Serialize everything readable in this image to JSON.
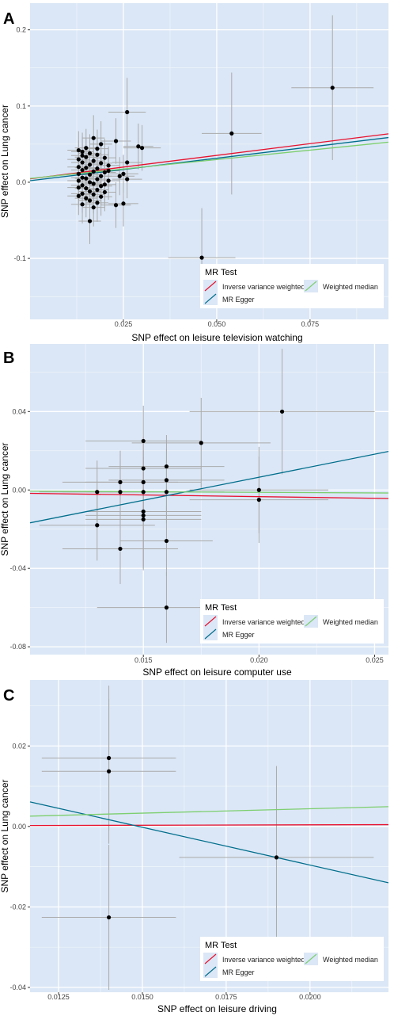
{
  "colors": {
    "panel_bg": "#dbe7f6",
    "grid": "#ffffff",
    "point": "#000000",
    "error_bar": "#aaaaaa",
    "ivw": "#e8112d",
    "egger": "#006e8c",
    "wmedian": "#7dcf6f"
  },
  "legend": {
    "title": "MR Test",
    "items": [
      {
        "key": "ivw",
        "label": "Inverse variance weighted"
      },
      {
        "key": "wmedian",
        "label": "Weighted median"
      },
      {
        "key": "egger",
        "label": "MR Egger"
      }
    ]
  },
  "chart_data": [
    {
      "panel": "A",
      "type": "scatter",
      "xlabel": "SNP effect on leisure television watching",
      "ylabel": "SNP effect on Lung cancer",
      "xlim": [
        0.0,
        0.096
      ],
      "ylim": [
        -0.18,
        0.235
      ],
      "xticks": [
        0.025,
        0.05,
        0.075
      ],
      "xtick_labels": [
        "0.025",
        "0.050",
        "0.075"
      ],
      "yticks": [
        -0.1,
        0.0,
        0.1,
        0.2
      ],
      "ytick_labels": [
        "-0.1",
        "0.0",
        "0.1",
        "0.2"
      ],
      "grid": true,
      "legend_position": "bottom-right",
      "points": [
        {
          "x": 0.081,
          "y": 0.124,
          "xe": 0.011,
          "ye": 0.095
        },
        {
          "x": 0.054,
          "y": 0.064,
          "xe": 0.008,
          "ye": 0.08
        },
        {
          "x": 0.046,
          "y": -0.099,
          "xe": 0.009,
          "ye": 0.065
        },
        {
          "x": 0.026,
          "y": 0.092,
          "xe": 0.005,
          "ye": 0.045
        },
        {
          "x": 0.023,
          "y": 0.054,
          "xe": 0.004,
          "ye": 0.03
        },
        {
          "x": 0.029,
          "y": 0.047,
          "xe": 0.004,
          "ye": 0.03
        },
        {
          "x": 0.03,
          "y": 0.045,
          "xe": 0.005,
          "ye": 0.03
        },
        {
          "x": 0.026,
          "y": 0.026,
          "xe": 0.004,
          "ye": 0.025
        },
        {
          "x": 0.025,
          "y": 0.011,
          "xe": 0.004,
          "ye": 0.025
        },
        {
          "x": 0.024,
          "y": 0.008,
          "xe": 0.004,
          "ye": 0.025
        },
        {
          "x": 0.026,
          "y": 0.004,
          "xe": 0.004,
          "ye": 0.025
        },
        {
          "x": 0.023,
          "y": -0.03,
          "xe": 0.004,
          "ye": 0.03
        },
        {
          "x": 0.025,
          "y": -0.028,
          "xe": 0.004,
          "ye": 0.03
        },
        {
          "x": 0.016,
          "y": -0.051,
          "xe": 0.003,
          "ye": 0.03
        },
        {
          "x": 0.017,
          "y": 0.058,
          "xe": 0.003,
          "ye": 0.03
        },
        {
          "x": 0.019,
          "y": 0.05,
          "xe": 0.003,
          "ye": 0.03
        },
        {
          "x": 0.013,
          "y": 0.042,
          "xe": 0.003,
          "ye": 0.025
        },
        {
          "x": 0.014,
          "y": 0.04,
          "xe": 0.003,
          "ye": 0.025
        },
        {
          "x": 0.016,
          "y": 0.038,
          "xe": 0.003,
          "ye": 0.025
        },
        {
          "x": 0.018,
          "y": 0.036,
          "xe": 0.003,
          "ye": 0.025
        },
        {
          "x": 0.015,
          "y": 0.033,
          "xe": 0.003,
          "ye": 0.025
        },
        {
          "x": 0.02,
          "y": 0.032,
          "xe": 0.003,
          "ye": 0.025
        },
        {
          "x": 0.013,
          "y": 0.03,
          "xe": 0.003,
          "ye": 0.025
        },
        {
          "x": 0.017,
          "y": 0.028,
          "xe": 0.003,
          "ye": 0.025
        },
        {
          "x": 0.014,
          "y": 0.026,
          "xe": 0.003,
          "ye": 0.025
        },
        {
          "x": 0.019,
          "y": 0.025,
          "xe": 0.003,
          "ye": 0.025
        },
        {
          "x": 0.016,
          "y": 0.023,
          "xe": 0.003,
          "ye": 0.025
        },
        {
          "x": 0.021,
          "y": 0.022,
          "xe": 0.003,
          "ye": 0.025
        },
        {
          "x": 0.013,
          "y": 0.02,
          "xe": 0.003,
          "ye": 0.025
        },
        {
          "x": 0.015,
          "y": 0.019,
          "xe": 0.003,
          "ye": 0.025
        },
        {
          "x": 0.018,
          "y": 0.018,
          "xe": 0.003,
          "ye": 0.025
        },
        {
          "x": 0.014,
          "y": 0.016,
          "xe": 0.003,
          "ye": 0.025
        },
        {
          "x": 0.017,
          "y": 0.014,
          "xe": 0.003,
          "ye": 0.025
        },
        {
          "x": 0.02,
          "y": 0.013,
          "xe": 0.003,
          "ye": 0.025
        },
        {
          "x": 0.013,
          "y": 0.011,
          "xe": 0.003,
          "ye": 0.025
        },
        {
          "x": 0.016,
          "y": 0.01,
          "xe": 0.003,
          "ye": 0.025
        },
        {
          "x": 0.019,
          "y": 0.008,
          "xe": 0.003,
          "ye": 0.025
        },
        {
          "x": 0.014,
          "y": 0.006,
          "xe": 0.003,
          "ye": 0.025
        },
        {
          "x": 0.015,
          "y": 0.005,
          "xe": 0.003,
          "ye": 0.025
        },
        {
          "x": 0.018,
          "y": 0.004,
          "xe": 0.003,
          "ye": 0.025
        },
        {
          "x": 0.013,
          "y": 0.002,
          "xe": 0.003,
          "ye": 0.025
        },
        {
          "x": 0.021,
          "y": 0.002,
          "xe": 0.003,
          "ye": 0.025
        },
        {
          "x": 0.016,
          "y": 0.0,
          "xe": 0.003,
          "ye": 0.025
        },
        {
          "x": 0.017,
          "y": -0.002,
          "xe": 0.003,
          "ye": 0.025
        },
        {
          "x": 0.014,
          "y": -0.004,
          "xe": 0.003,
          "ye": 0.025
        },
        {
          "x": 0.019,
          "y": -0.005,
          "xe": 0.003,
          "ye": 0.025
        },
        {
          "x": 0.013,
          "y": -0.007,
          "xe": 0.003,
          "ye": 0.025
        },
        {
          "x": 0.015,
          "y": -0.008,
          "xe": 0.003,
          "ye": 0.025
        },
        {
          "x": 0.018,
          "y": -0.01,
          "xe": 0.003,
          "ye": 0.025
        },
        {
          "x": 0.016,
          "y": -0.012,
          "xe": 0.003,
          "ye": 0.025
        },
        {
          "x": 0.02,
          "y": -0.013,
          "xe": 0.003,
          "ye": 0.025
        },
        {
          "x": 0.014,
          "y": -0.015,
          "xe": 0.003,
          "ye": 0.025
        },
        {
          "x": 0.017,
          "y": -0.016,
          "xe": 0.003,
          "ye": 0.025
        },
        {
          "x": 0.013,
          "y": -0.018,
          "xe": 0.003,
          "ye": 0.025
        },
        {
          "x": 0.019,
          "y": -0.019,
          "xe": 0.003,
          "ye": 0.025
        },
        {
          "x": 0.015,
          "y": -0.021,
          "xe": 0.003,
          "ye": 0.025
        },
        {
          "x": 0.016,
          "y": -0.024,
          "xe": 0.003,
          "ye": 0.025
        },
        {
          "x": 0.018,
          "y": -0.027,
          "xe": 0.003,
          "ye": 0.025
        },
        {
          "x": 0.014,
          "y": -0.029,
          "xe": 0.003,
          "ye": 0.025
        },
        {
          "x": 0.017,
          "y": -0.033,
          "xe": 0.003,
          "ye": 0.025
        },
        {
          "x": 0.015,
          "y": 0.045,
          "xe": 0.003,
          "ye": 0.025
        },
        {
          "x": 0.014,
          "y": 0.035,
          "xe": 0.003,
          "ye": 0.025
        },
        {
          "x": 0.018,
          "y": 0.044,
          "xe": 0.003,
          "ye": 0.025
        },
        {
          "x": 0.02,
          "y": -0.003,
          "xe": 0.003,
          "ye": 0.025
        },
        {
          "x": 0.021,
          "y": 0.015,
          "xe": 0.003,
          "ye": 0.025
        }
      ],
      "lines": [
        {
          "key": "ivw",
          "intercept": 0.0045,
          "slope": 0.615
        },
        {
          "key": "egger",
          "intercept": 0.002,
          "slope": 0.59
        },
        {
          "key": "wmedian",
          "intercept": 0.005,
          "slope": 0.495
        }
      ]
    },
    {
      "panel": "B",
      "type": "scatter",
      "xlabel": "SNP effect on leisure computer use",
      "ylabel": "SNP effect on Lung cancer",
      "xlim": [
        0.0101,
        0.0256
      ],
      "ylim": [
        -0.084,
        0.0745
      ],
      "xticks": [
        0.015,
        0.02,
        0.025
      ],
      "xtick_labels": [
        "0.015",
        "0.020",
        "0.025"
      ],
      "yticks": [
        -0.08,
        -0.04,
        0.0,
        0.04
      ],
      "ytick_labels": [
        "-0.08",
        "-0.04",
        "0.00",
        "0.04"
      ],
      "grid": true,
      "legend_position": "bottom-right",
      "points": [
        {
          "x": 0.021,
          "y": 0.04,
          "xe": 0.004,
          "ye": 0.032
        },
        {
          "x": 0.0175,
          "y": 0.024,
          "xe": 0.003,
          "ye": 0.023
        },
        {
          "x": 0.015,
          "y": 0.025,
          "xe": 0.0025,
          "ye": 0.018
        },
        {
          "x": 0.015,
          "y": 0.011,
          "xe": 0.0025,
          "ye": 0.016
        },
        {
          "x": 0.016,
          "y": 0.012,
          "xe": 0.0025,
          "ye": 0.016
        },
        {
          "x": 0.016,
          "y": 0.005,
          "xe": 0.0025,
          "ye": 0.016
        },
        {
          "x": 0.014,
          "y": 0.004,
          "xe": 0.0025,
          "ye": 0.016
        },
        {
          "x": 0.015,
          "y": 0.004,
          "xe": 0.0025,
          "ye": 0.016
        },
        {
          "x": 0.013,
          "y": -0.001,
          "xe": 0.0025,
          "ye": 0.016
        },
        {
          "x": 0.014,
          "y": -0.001,
          "xe": 0.0025,
          "ye": 0.016
        },
        {
          "x": 0.015,
          "y": -0.001,
          "xe": 0.0025,
          "ye": 0.016
        },
        {
          "x": 0.016,
          "y": -0.001,
          "xe": 0.0025,
          "ye": 0.016
        },
        {
          "x": 0.02,
          "y": 0.0,
          "xe": 0.003,
          "ye": 0.022
        },
        {
          "x": 0.02,
          "y": -0.005,
          "xe": 0.003,
          "ye": 0.022
        },
        {
          "x": 0.015,
          "y": -0.011,
          "xe": 0.0025,
          "ye": 0.028
        },
        {
          "x": 0.015,
          "y": -0.013,
          "xe": 0.0025,
          "ye": 0.028
        },
        {
          "x": 0.015,
          "y": -0.015,
          "xe": 0.0025,
          "ye": 0.025
        },
        {
          "x": 0.013,
          "y": -0.018,
          "xe": 0.0025,
          "ye": 0.018
        },
        {
          "x": 0.014,
          "y": -0.03,
          "xe": 0.0025,
          "ye": 0.018
        },
        {
          "x": 0.016,
          "y": -0.026,
          "xe": 0.002,
          "ye": 0.018
        },
        {
          "x": 0.016,
          "y": -0.06,
          "xe": 0.003,
          "ye": 0.018
        }
      ],
      "lines": [
        {
          "key": "ivw",
          "intercept": 0.0,
          "slope": -0.17
        },
        {
          "key": "egger",
          "intercept": -0.0405,
          "slope": 2.35
        },
        {
          "key": "wmedian",
          "intercept": 0.0,
          "slope": -0.06
        }
      ]
    },
    {
      "panel": "C",
      "type": "scatter",
      "xlabel": "SNP effect on leisure driving",
      "ylabel": "SNP effect on Lung cancer",
      "xlim": [
        0.01165,
        0.02234
      ],
      "ylim": [
        -0.0412,
        0.0364
      ],
      "xticks": [
        0.0125,
        0.015,
        0.0175,
        0.02
      ],
      "xtick_labels": [
        "0.0125",
        "0.0150",
        "0.0175",
        "0.0200"
      ],
      "yticks": [
        -0.04,
        -0.02,
        0.0,
        0.02
      ],
      "ytick_labels": [
        "-0.04",
        "-0.02",
        "0.00",
        "0.02"
      ],
      "grid": true,
      "legend_position": "bottom-right",
      "points": [
        {
          "x": 0.014,
          "y": 0.017,
          "xe": 0.002,
          "ye": 0.018
        },
        {
          "x": 0.014,
          "y": 0.0137,
          "xe": 0.002,
          "ye": 0.018
        },
        {
          "x": 0.014,
          "y": -0.0226,
          "xe": 0.002,
          "ye": 0.018
        },
        {
          "x": 0.019,
          "y": -0.0077,
          "xe": 0.0029,
          "ye": 0.0227
        }
      ],
      "lines": [
        {
          "key": "ivw",
          "intercept": 0.0,
          "slope": 0.02
        },
        {
          "key": "egger",
          "intercept": 0.028,
          "slope": -1.88
        },
        {
          "key": "wmedian",
          "intercept": 0.0,
          "slope": 0.22
        }
      ]
    }
  ]
}
